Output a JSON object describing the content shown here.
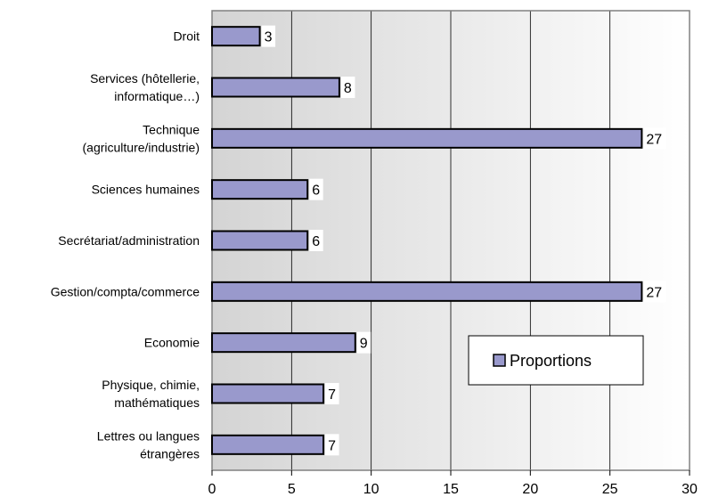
{
  "chart_data": {
    "type": "bar",
    "orientation": "horizontal",
    "categories": [
      [
        "Droit"
      ],
      [
        "Services (hôtellerie,",
        "informatique…)"
      ],
      [
        "Technique",
        "(agriculture/industrie)"
      ],
      [
        "Sciences humaines"
      ],
      [
        "Secrétariat/administration"
      ],
      [
        "Gestion/compta/commerce"
      ],
      [
        "Economie"
      ],
      [
        "Physique, chimie,",
        "mathématiques"
      ],
      [
        "Lettres ou langues",
        "étrangères"
      ]
    ],
    "series": [
      {
        "name": "Proportions",
        "values": [
          3,
          8,
          27,
          6,
          6,
          27,
          9,
          7,
          7
        ]
      }
    ],
    "data_labels": [
      "3",
      "8",
      "27",
      "6",
      "6",
      "27",
      "9",
      "7",
      "7"
    ],
    "x_ticks": [
      "0",
      "5",
      "10",
      "15",
      "20",
      "25",
      "30"
    ],
    "xlim": [
      0,
      30
    ],
    "grid": true,
    "legend_position": "right",
    "colors": {
      "bar_fill": "#9999cc",
      "bar_stroke": "#000000",
      "plot_gradient_start": "#d4d4d4",
      "plot_gradient_end": "#ffffff",
      "grid": "#000000",
      "frame": "#808080",
      "legend_bg": "#ffffff"
    }
  }
}
